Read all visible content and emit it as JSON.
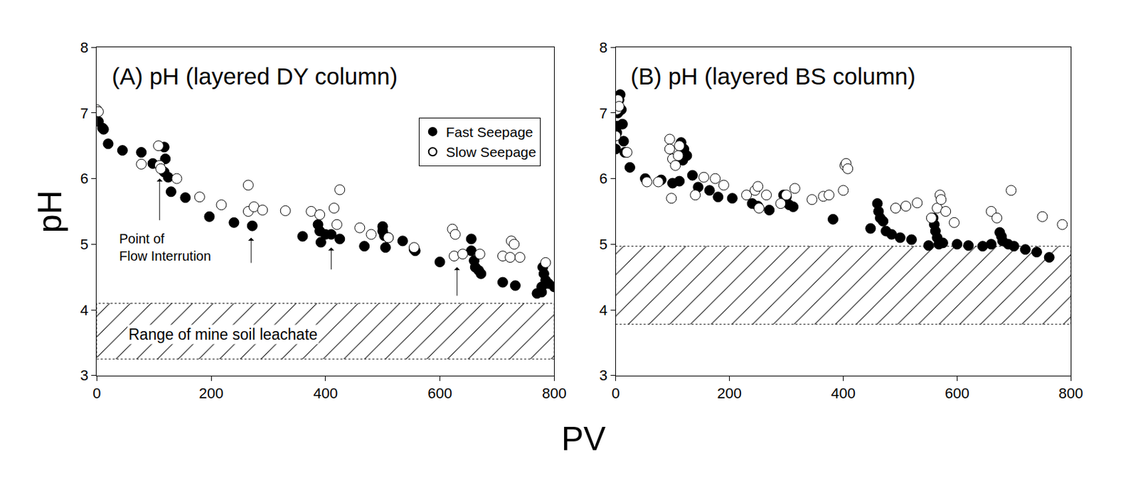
{
  "chart_data": [
    {
      "type": "scatter",
      "title": "(A) pH (layered DY column)",
      "xlim": [
        0,
        800
      ],
      "xticks": [
        0,
        200,
        400,
        600,
        800
      ],
      "ylim": [
        3,
        8
      ],
      "yticks": [
        3,
        4,
        5,
        6,
        7,
        8
      ],
      "legend": "upper right",
      "series": [
        {
          "name": "Fast Seepage",
          "color": "#000000",
          "marker": "filled",
          "x": [
            0,
            3,
            10,
            12,
            20,
            45,
            78,
            98,
            118,
            120,
            118,
            125,
            130,
            155,
            197,
            240,
            272,
            360,
            387,
            390,
            392,
            400,
            410,
            425,
            468,
            500,
            500,
            503,
            505,
            510,
            535,
            555,
            557,
            600,
            655,
            655,
            660,
            662,
            668,
            672,
            710,
            732,
            770,
            778,
            778,
            780,
            782,
            785,
            790,
            800
          ],
          "values": [
            7.03,
            6.87,
            6.77,
            6.75,
            6.53,
            6.43,
            6.4,
            6.23,
            6.48,
            6.3,
            6.1,
            6.02,
            5.8,
            5.71,
            5.42,
            5.33,
            5.28,
            5.12,
            5.3,
            5.2,
            5.03,
            5.15,
            5.15,
            5.08,
            4.97,
            5.27,
            5.2,
            5.13,
            4.95,
            5.1,
            5.05,
            4.92,
            4.9,
            4.73,
            5.08,
            4.9,
            4.75,
            4.65,
            4.6,
            4.55,
            4.42,
            4.37,
            4.25,
            4.27,
            4.35,
            4.65,
            4.55,
            4.45,
            4.4,
            4.35
          ]
        },
        {
          "name": "Slow Seepage",
          "color": "#000000",
          "marker": "open",
          "x": [
            0,
            3,
            78,
            108,
            110,
            112,
            140,
            180,
            218,
            265,
            265,
            275,
            290,
            330,
            375,
            390,
            415,
            420,
            425,
            460,
            480,
            510,
            555,
            622,
            625,
            627,
            640,
            670,
            710,
            723,
            725,
            730,
            740,
            785
          ],
          "values": [
            7.05,
            7.02,
            6.22,
            6.5,
            6.2,
            6.15,
            6.0,
            5.72,
            5.6,
            5.9,
            5.5,
            5.57,
            5.52,
            5.51,
            5.5,
            5.45,
            5.55,
            5.3,
            5.83,
            5.25,
            5.15,
            5.1,
            4.95,
            5.23,
            4.82,
            5.15,
            4.85,
            4.85,
            4.82,
            4.8,
            5.05,
            5.0,
            4.8,
            4.72
          ]
        }
      ],
      "band": {
        "range": [
          3.25,
          4.1
        ],
        "label": "Range of mine soil leachate",
        "label_at": [
          53,
          3.63
        ]
      },
      "annotations": [
        {
          "lines": [
            "Point of",
            "Flow Interrution"
          ],
          "x": 37,
          "y": 4.95
        }
      ],
      "arrows": [
        {
          "x": 110,
          "y": 6.0,
          "y_tail": 5.35
        },
        {
          "x": 270,
          "y": 5.1,
          "y_tail": 4.7
        },
        {
          "x": 410,
          "y": 4.95,
          "y_tail": 4.6
        },
        {
          "x": 630,
          "y": 4.65,
          "y_tail": 4.2
        }
      ]
    },
    {
      "type": "scatter",
      "title": "(B) pH (layered BS column)",
      "xlim": [
        0,
        800
      ],
      "xticks": [
        0,
        200,
        400,
        600,
        800
      ],
      "ylim": [
        3,
        8
      ],
      "yticks": [
        3,
        4,
        5,
        6,
        7,
        8
      ],
      "series": [
        {
          "name": "Fast Seepage",
          "color": "#000000",
          "marker": "filled",
          "x": [
            0,
            2,
            3,
            4,
            5,
            6,
            8,
            10,
            12,
            14,
            16,
            25,
            52,
            80,
            100,
            112,
            115,
            118,
            120,
            125,
            135,
            145,
            165,
            180,
            205,
            240,
            250,
            270,
            295,
            300,
            305,
            312,
            382,
            448,
            460,
            462,
            465,
            470,
            475,
            485,
            500,
            520,
            550,
            558,
            560,
            562,
            565,
            568,
            575,
            600,
            620,
            645,
            660,
            675,
            678,
            680,
            690,
            700,
            720,
            740,
            762
          ],
          "values": [
            6.45,
            6.7,
            6.8,
            7.0,
            7.05,
            7.2,
            7.28,
            7.05,
            6.83,
            6.57,
            6.4,
            6.17,
            6.0,
            5.98,
            5.93,
            5.96,
            6.55,
            6.28,
            6.45,
            6.35,
            6.05,
            5.87,
            5.82,
            5.72,
            5.7,
            5.62,
            5.58,
            5.52,
            5.75,
            5.72,
            5.6,
            5.57,
            5.38,
            5.24,
            5.62,
            5.5,
            5.4,
            5.35,
            5.2,
            5.15,
            5.1,
            5.07,
            4.98,
            5.4,
            5.3,
            5.2,
            5.1,
            5.0,
            5.02,
            5.0,
            4.98,
            4.97,
            5.0,
            5.18,
            5.12,
            5.05,
            5.0,
            4.97,
            4.92,
            4.88,
            4.8
          ]
        },
        {
          "name": "Slow Seepage",
          "color": "#000000",
          "marker": "open",
          "x": [
            0,
            2,
            4,
            6,
            20,
            55,
            75,
            95,
            95,
            98,
            100,
            105,
            110,
            112,
            140,
            155,
            175,
            190,
            230,
            245,
            250,
            252,
            265,
            290,
            300,
            315,
            345,
            365,
            375,
            400,
            403,
            405,
            408,
            492,
            510,
            530,
            555,
            565,
            570,
            572,
            580,
            595,
            660,
            670,
            695,
            750,
            785
          ],
          "values": [
            6.65,
            7.05,
            7.2,
            7.1,
            6.4,
            5.95,
            5.95,
            6.6,
            6.45,
            5.7,
            6.3,
            6.2,
            6.35,
            6.5,
            5.75,
            6.02,
            6.0,
            5.9,
            5.75,
            5.82,
            5.88,
            5.55,
            5.75,
            5.62,
            5.75,
            5.85,
            5.68,
            5.73,
            5.75,
            5.82,
            6.2,
            6.23,
            6.15,
            5.55,
            5.58,
            5.63,
            5.4,
            5.55,
            5.75,
            5.68,
            5.5,
            5.33,
            5.5,
            5.4,
            5.82,
            5.42,
            5.3
          ]
        }
      ],
      "band": {
        "range": [
          3.78,
          4.97
        ]
      }
    }
  ],
  "shared": {
    "x_label": "PV",
    "y_label": "pH"
  }
}
